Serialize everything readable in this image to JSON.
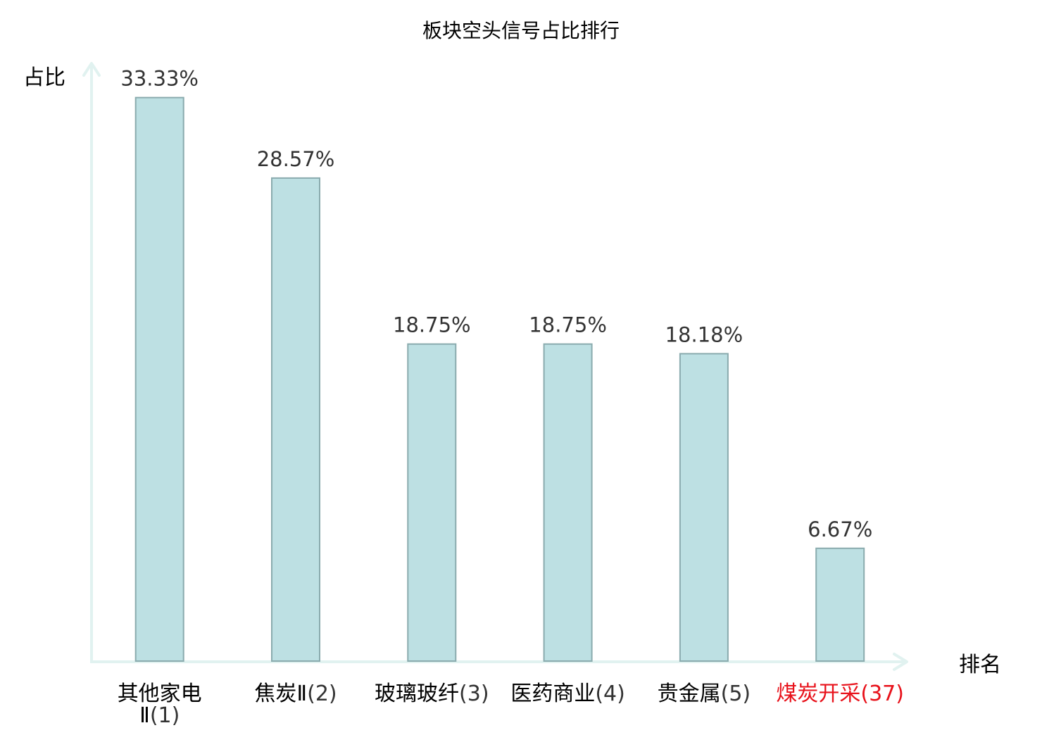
{
  "chart_data": {
    "type": "bar",
    "title": "板块空头信号占比排行",
    "ylabel": "占比",
    "xlabel": "排名",
    "ylim": [
      0,
      35.27
    ],
    "grid": false,
    "categories": [
      {
        "name": "其他家电Ⅱ",
        "rank": "(1)",
        "highlight": false
      },
      {
        "name": "焦炭Ⅱ",
        "rank": "(2)",
        "highlight": false
      },
      {
        "name": "玻璃玻纤",
        "rank": "(3)",
        "highlight": false
      },
      {
        "name": "医药商业",
        "rank": "(4)",
        "highlight": false
      },
      {
        "name": "贵金属",
        "rank": "(5)",
        "highlight": false
      },
      {
        "name": "煤炭开采",
        "rank": "(37)",
        "highlight": true
      }
    ],
    "values": [
      33.33,
      28.57,
      18.75,
      18.75,
      18.18,
      6.67
    ],
    "value_labels": [
      "33.33%",
      "28.57%",
      "18.75%",
      "18.75%",
      "18.18%",
      "6.67%"
    ]
  },
  "colors": {
    "bar_fill": "#bde0e3",
    "bar_stroke": "#8aabae",
    "axis": "#e1f2f0",
    "text": "#000000",
    "value_text": "#333333",
    "rank_text": "#333333",
    "highlight": "#e8121b"
  }
}
